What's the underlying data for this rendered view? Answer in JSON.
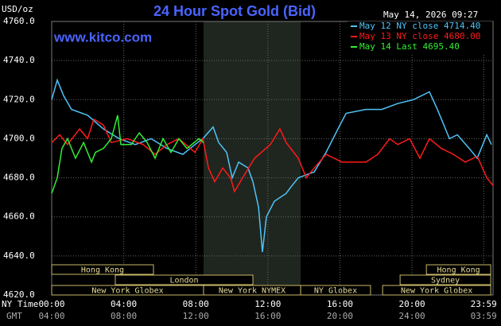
{
  "chart_data": {
    "type": "line",
    "title": "24 Hour Spot Gold (Bid)",
    "timestamp": "May 14, 2026 09:27",
    "y_unit": "USD/oz",
    "watermark": "www.kitco.com",
    "background": "#000000",
    "grid": true,
    "xlim": [
      0,
      24.5
    ],
    "ylim": [
      4620,
      4760
    ],
    "yticks": [
      {
        "value": 4620,
        "label": "4620.0"
      },
      {
        "value": 4640,
        "label": "4640.0"
      },
      {
        "value": 4660,
        "label": "4660.0"
      },
      {
        "value": 4680,
        "label": "4680.0"
      },
      {
        "value": 4700,
        "label": "4700.0"
      },
      {
        "value": 4720,
        "label": "4720.0"
      },
      {
        "value": 4740,
        "label": "4740.0"
      },
      {
        "value": 4760,
        "label": "4760.0"
      }
    ],
    "xticks": [
      {
        "value": 0,
        "label": "00:00"
      },
      {
        "value": 4,
        "label": "04:00"
      },
      {
        "value": 8,
        "label": "08:00"
      },
      {
        "value": 12,
        "label": "12:00"
      },
      {
        "value": 16,
        "label": "16:00"
      },
      {
        "value": 20,
        "label": "20:00"
      },
      {
        "value": 23.98,
        "label": "23:59"
      }
    ],
    "gmt_labels": [
      "04:00",
      "08:00",
      "12:00",
      "16:00",
      "20:00",
      "24:00",
      "03:59"
    ],
    "x_row_labels": [
      "NY Time",
      "GMT"
    ],
    "shaded_range": [
      8.43,
      13.82
    ],
    "sessions": [
      {
        "label": "Hong Kong",
        "start": 0,
        "end": 5.65
      },
      {
        "label": "Hong Kong",
        "start": 20.8,
        "end": 24.37
      },
      {
        "label": "London",
        "start": 3.53,
        "end": 11.17
      },
      {
        "label": "Sydney",
        "start": 19.34,
        "end": 24.37
      },
      {
        "label": "New York Globex",
        "start": 0,
        "end": 8.43
      },
      {
        "label": "New York NYMEX",
        "start": 8.43,
        "end": 13.82
      },
      {
        "label": "NY Globex",
        "start": 13.82,
        "end": 17.7
      },
      {
        "label": "New York Globex",
        "start": 18.37,
        "end": 24.37
      }
    ],
    "series": [
      {
        "name": "May 12 NY close 4714.40",
        "color": "#4fc3f7",
        "x": [
          0,
          0.31,
          0.66,
          1.1,
          1.99,
          2.87,
          3.75,
          4.64,
          5.52,
          6.4,
          7.28,
          7.95,
          8.39,
          8.96,
          9.27,
          9.71,
          10.02,
          10.38,
          10.9,
          11.17,
          11.48,
          11.7,
          11.92,
          12.36,
          13.02,
          13.25,
          13.69,
          14.57,
          15.23,
          15.89,
          16.34,
          17.44,
          18.32,
          19.21,
          20.09,
          20.97,
          21.41,
          22.08,
          22.52,
          23.18,
          23.62,
          24.15,
          24.41
        ],
        "values": [
          4720,
          4730,
          4722,
          4715,
          4712,
          4705,
          4700,
          4697,
          4700,
          4695,
          4692,
          4697,
          4700,
          4706,
          4698,
          4693,
          4680,
          4688,
          4685,
          4678,
          4665,
          4642,
          4660,
          4668,
          4672,
          4675,
          4680,
          4683,
          4693,
          4705,
          4713,
          4715,
          4715,
          4718,
          4720,
          4724,
          4715,
          4700,
          4702,
          4695,
          4690,
          4702,
          4697
        ]
      },
      {
        "name": "May 13 NY close 4680.00",
        "color": "#ff1a1a",
        "x": [
          0,
          0.44,
          0.88,
          1.55,
          1.99,
          2.34,
          2.87,
          3.31,
          4.19,
          5.08,
          5.74,
          6.4,
          7.06,
          7.95,
          8.39,
          8.7,
          9.05,
          9.49,
          9.93,
          10.15,
          10.6,
          11.26,
          12.14,
          12.67,
          13.02,
          13.69,
          14.13,
          14.57,
          15.23,
          16.12,
          17.44,
          18.1,
          18.76,
          19.21,
          19.87,
          20.44,
          20.97,
          21.63,
          22.3,
          22.96,
          23.62,
          24.15,
          24.5
        ],
        "values": [
          4698,
          4702,
          4697,
          4705,
          4700,
          4710,
          4707,
          4698,
          4700,
          4697,
          4692,
          4697,
          4700,
          4693,
          4700,
          4685,
          4678,
          4685,
          4680,
          4673,
          4680,
          4690,
          4697,
          4705,
          4698,
          4690,
          4680,
          4685,
          4692,
          4688,
          4688,
          4692,
          4700,
          4697,
          4700,
          4690,
          4700,
          4695,
          4692,
          4688,
          4691,
          4680,
          4676
        ]
      },
      {
        "name": "May 14 Last 4695.40",
        "color": "#33ee33",
        "x": [
          0,
          0.31,
          0.57,
          0.88,
          1.32,
          1.77,
          2.21,
          2.43,
          2.87,
          3.31,
          3.66,
          3.84,
          4.42,
          4.86,
          5.3,
          5.74,
          6.18,
          6.62,
          7.06,
          7.51,
          8.17,
          8.43
        ],
        "values": [
          4672,
          4680,
          4695,
          4700,
          4690,
          4698,
          4688,
          4693,
          4695,
          4700,
          4712,
          4697,
          4697,
          4703,
          4698,
          4690,
          4700,
          4693,
          4700,
          4695,
          4700,
          4698
        ]
      }
    ]
  }
}
